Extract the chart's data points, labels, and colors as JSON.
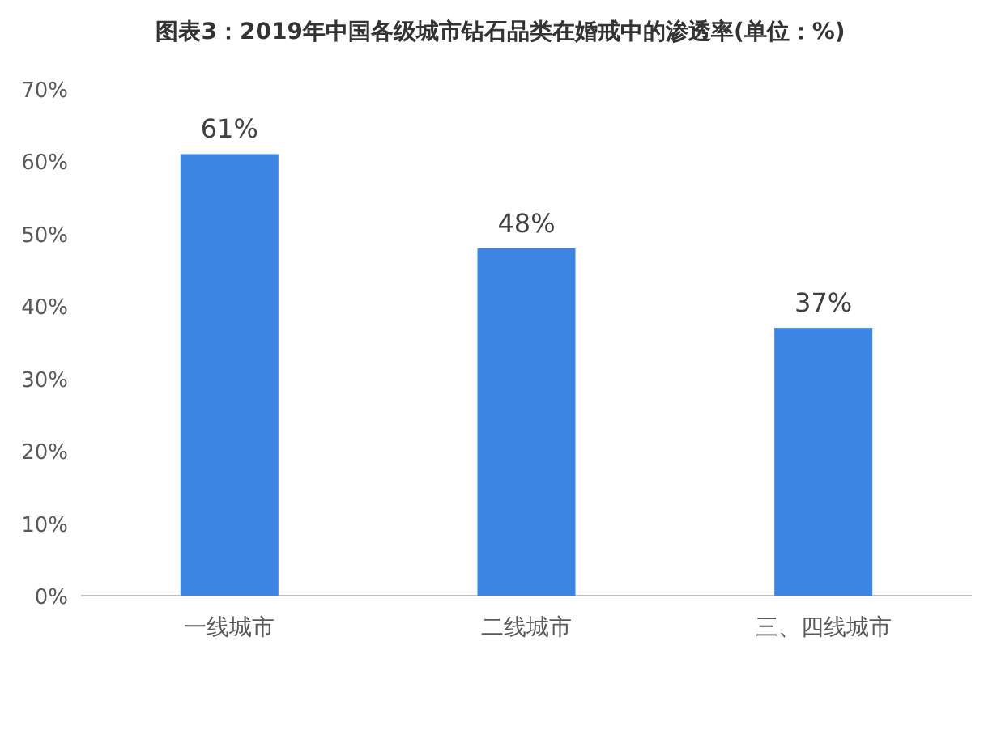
{
  "chart_data": {
    "type": "bar",
    "title": "图表3：2019年中国各级城市钻石品类在婚戒中的渗透率(单位：%)",
    "categories": [
      "一线城市",
      "二线城市",
      "三、四线城市"
    ],
    "values": [
      61,
      48,
      37
    ],
    "value_labels": [
      "61%",
      "48%",
      "37%"
    ],
    "color": "#3c85e3",
    "ylim": [
      0,
      70
    ],
    "yticks": [
      {
        "value": 0,
        "label": "0%"
      },
      {
        "value": 10,
        "label": "10%"
      },
      {
        "value": 20,
        "label": "20%"
      },
      {
        "value": 30,
        "label": "30%"
      },
      {
        "value": 40,
        "label": "40%"
      },
      {
        "value": 50,
        "label": "50%"
      },
      {
        "value": 60,
        "label": "60%"
      },
      {
        "value": 70,
        "label": "70%"
      }
    ],
    "grid": false
  }
}
